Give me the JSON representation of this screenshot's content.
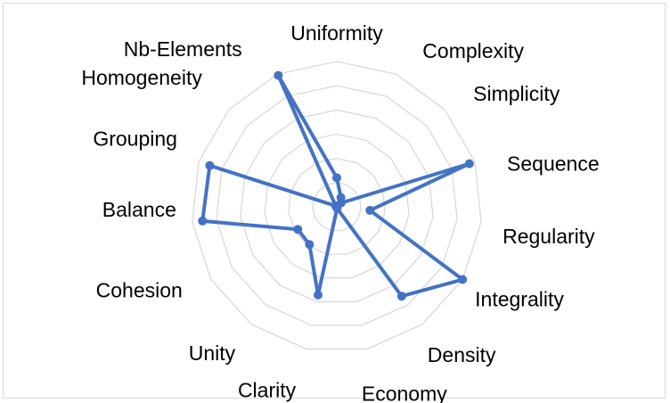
{
  "chart_data": {
    "type": "radar",
    "title": "",
    "categories": [
      "Uniformity",
      "Complexity",
      "Simplicity",
      "Sequence",
      "Regularity",
      "Integrality",
      "Density",
      "Economy",
      "Clarity",
      "Unity",
      "Cohesion",
      "Balance",
      "Grouping",
      "Homogeneity",
      "Nb-Elements"
    ],
    "series": [
      {
        "values": [
          2.0,
          0.7,
          0.4,
          9.6,
          2.3,
          10.0,
          7.6,
          0.1,
          6.2,
          3.2,
          3.1,
          9.3,
          9.2,
          0.1,
          9.9
        ]
      }
    ],
    "rlim": [
      0,
      10
    ],
    "rings": 6,
    "grid": true,
    "legend": "none",
    "colors": {
      "series": "#4472c4",
      "grid": "#d9d9d9"
    }
  }
}
